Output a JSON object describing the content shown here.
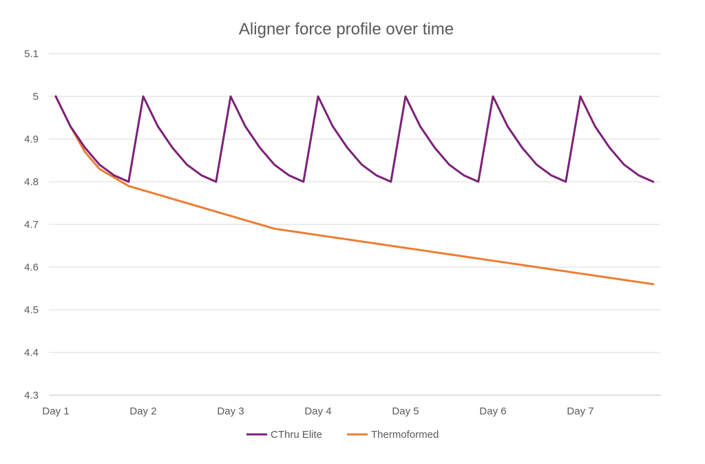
{
  "chart_data": {
    "type": "line",
    "title": "Aligner force profile over time",
    "xlabel": "",
    "ylabel": "",
    "ylim": [
      4.3,
      5.1
    ],
    "yticks": [
      "4.3",
      "4.4",
      "4.5",
      "4.6",
      "4.7",
      "4.8",
      "4.9",
      "5",
      "5.1"
    ],
    "x_tick_labels": [
      "Day 1",
      "Day 2",
      "Day 3",
      "Day 4",
      "Day 5",
      "Day 6",
      "Day 7"
    ],
    "grid": true,
    "legend": "bottom",
    "series": [
      {
        "name": "CThru Elite",
        "color": "#7b2177",
        "x": [
          0,
          0.167,
          0.333,
          0.5,
          0.667,
          0.833,
          1,
          1.167,
          1.333,
          1.5,
          1.667,
          1.833,
          2,
          2.167,
          2.333,
          2.5,
          2.667,
          2.833,
          3,
          3.167,
          3.333,
          3.5,
          3.667,
          3.833,
          4,
          4.167,
          4.333,
          4.5,
          4.667,
          4.833,
          5,
          5.167,
          5.333,
          5.5,
          5.667,
          5.833,
          6,
          6.167,
          6.333,
          6.5,
          6.667,
          6.833
        ],
        "values": [
          5.0,
          4.93,
          4.88,
          4.84,
          4.815,
          4.8,
          5.0,
          4.93,
          4.88,
          4.84,
          4.815,
          4.8,
          5.0,
          4.93,
          4.88,
          4.84,
          4.815,
          4.8,
          5.0,
          4.93,
          4.88,
          4.84,
          4.815,
          4.8,
          5.0,
          4.93,
          4.88,
          4.84,
          4.815,
          4.8,
          5.0,
          4.93,
          4.88,
          4.84,
          4.815,
          4.8,
          5.0,
          4.93,
          4.88,
          4.84,
          4.815,
          4.8
        ]
      },
      {
        "name": "Thermoformed",
        "color": "#ed7d31",
        "x": [
          0,
          0.167,
          0.333,
          0.5,
          0.667,
          0.833,
          1,
          1.167,
          1.333,
          1.5,
          1.667,
          1.833,
          2,
          2.167,
          2.333,
          2.5,
          2.667,
          2.833,
          3,
          3.167,
          3.333,
          3.5,
          3.667,
          3.833,
          4,
          4.167,
          4.333,
          4.5,
          4.667,
          4.833,
          5,
          5.167,
          5.333,
          5.5,
          5.667,
          5.833,
          6,
          6.167,
          6.333,
          6.5,
          6.667,
          6.833
        ],
        "values": [
          5.0,
          4.93,
          4.87,
          4.83,
          4.81,
          4.79,
          4.78,
          4.77,
          4.76,
          4.75,
          4.74,
          4.73,
          4.72,
          4.71,
          4.7,
          4.69,
          4.685,
          4.68,
          4.675,
          4.67,
          4.665,
          4.66,
          4.655,
          4.65,
          4.645,
          4.64,
          4.635,
          4.63,
          4.625,
          4.62,
          4.615,
          4.61,
          4.605,
          4.6,
          4.595,
          4.59,
          4.585,
          4.58,
          4.575,
          4.57,
          4.565,
          4.56
        ]
      }
    ]
  }
}
